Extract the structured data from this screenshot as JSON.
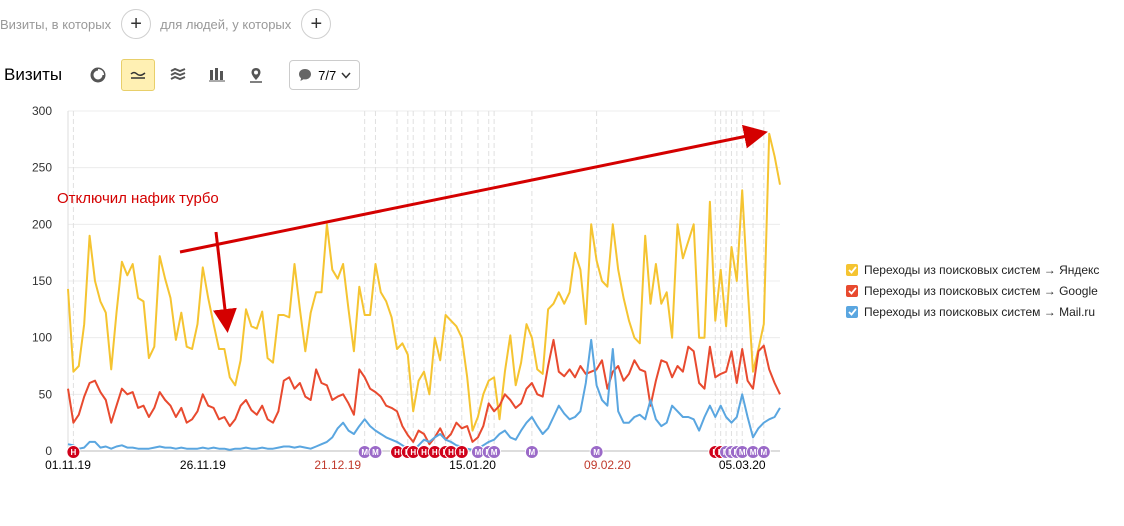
{
  "segment": {
    "visits_label": "Визиты, в которых",
    "people_label": "для людей, у которых",
    "add_symbol": "+"
  },
  "toolbar": {
    "title": "Визиты",
    "icons": [
      "pie-chart-icon",
      "line-chart-icon",
      "area-chart-icon",
      "bar-chart-icon",
      "map-icon"
    ],
    "active_icon": "line-chart-icon",
    "annotations_label": "7/7"
  },
  "annotation_note": "Отключил нафик турбо",
  "colors": {
    "yandex": "#f5c431",
    "google": "#e84a2f",
    "mailru": "#5aa6e0",
    "holiday_marker": "#d0021b",
    "mail_marker": "#9b6ac8",
    "accent": "#fff0b3"
  },
  "chart_data": {
    "type": "line",
    "ylim": [
      0,
      300
    ],
    "yticks": [
      0,
      50,
      100,
      150,
      200,
      250,
      300
    ],
    "xtick_labels": [
      {
        "label": "01.11.19",
        "index": 0,
        "color": "#000000"
      },
      {
        "label": "26.11.19",
        "index": 25,
        "color": "#000000"
      },
      {
        "label": "21.12.19",
        "index": 50,
        "color": "#c0392b"
      },
      {
        "label": "15.01.20",
        "index": 75,
        "color": "#000000"
      },
      {
        "label": "09.02.20",
        "index": 100,
        "color": "#c0392b"
      },
      {
        "label": "05.03.20",
        "index": 125,
        "color": "#000000"
      }
    ],
    "series": [
      {
        "name": "Переходы из поисковых систем → Яндекс",
        "color": "#f5c431",
        "values": [
          143,
          70,
          75,
          112,
          190,
          150,
          132,
          122,
          72,
          122,
          167,
          155,
          165,
          135,
          132,
          82,
          92,
          172,
          152,
          135,
          98,
          122,
          92,
          90,
          112,
          162,
          135,
          112,
          90,
          90,
          65,
          58,
          80,
          125,
          110,
          108,
          123,
          82,
          78,
          120,
          120,
          118,
          165,
          125,
          88,
          122,
          140,
          140,
          200,
          160,
          152,
          165,
          125,
          88,
          145,
          120,
          120,
          165,
          140,
          132,
          118,
          90,
          95,
          85,
          35,
          62,
          70,
          50,
          100,
          80,
          120,
          115,
          110,
          100,
          65,
          18,
          30,
          50,
          62,
          65,
          28,
          70,
          102,
          58,
          78,
          112,
          100,
          72,
          68,
          125,
          130,
          140,
          130,
          140,
          175,
          160,
          112,
          200,
          168,
          150,
          145,
          200,
          160,
          135,
          115,
          100,
          95,
          190,
          130,
          165,
          130,
          140,
          100,
          200,
          170,
          185,
          200,
          100,
          100,
          220,
          115,
          160,
          110,
          180,
          150,
          230,
          145,
          70,
          90,
          112,
          280,
          260,
          235
        ]
      },
      {
        "name": "Переходы из поисковых систем → Google",
        "color": "#e84a2f",
        "values": [
          55,
          25,
          32,
          48,
          60,
          62,
          52,
          45,
          25,
          40,
          55,
          50,
          52,
          38,
          40,
          30,
          38,
          52,
          45,
          40,
          30,
          38,
          25,
          28,
          35,
          50,
          40,
          38,
          28,
          30,
          22,
          28,
          40,
          45,
          36,
          32,
          40,
          28,
          25,
          35,
          62,
          65,
          55,
          60,
          48,
          45,
          72,
          60,
          58,
          45,
          48,
          50,
          42,
          32,
          72,
          65,
          55,
          52,
          48,
          40,
          38,
          35,
          22,
          14,
          8,
          18,
          15,
          6,
          12,
          20,
          10,
          15,
          25,
          20,
          22,
          8,
          12,
          22,
          42,
          35,
          40,
          50,
          45,
          38,
          42,
          55,
          60,
          50,
          48,
          75,
          98,
          70,
          66,
          72,
          65,
          75,
          68,
          70,
          72,
          80,
          55,
          70,
          75,
          62,
          68,
          80,
          72,
          70,
          40,
          62,
          80,
          78,
          65,
          75,
          70,
          92,
          88,
          60,
          55,
          92,
          65,
          68,
          70,
          88,
          60,
          90,
          62,
          55,
          88,
          93,
          72,
          60,
          50
        ]
      },
      {
        "name": "Переходы из поисковых систем → Mail.ru",
        "color": "#5aa6e0",
        "values": [
          6,
          5,
          2,
          3,
          8,
          8,
          3,
          4,
          2,
          4,
          5,
          3,
          3,
          2,
          2,
          2,
          3,
          4,
          3,
          3,
          2,
          3,
          2,
          2,
          2,
          3,
          2,
          3,
          2,
          2,
          1,
          2,
          2,
          3,
          2,
          2,
          3,
          2,
          2,
          3,
          4,
          4,
          3,
          4,
          3,
          2,
          4,
          6,
          8,
          12,
          20,
          25,
          18,
          15,
          22,
          28,
          22,
          18,
          15,
          12,
          10,
          8,
          5,
          2,
          0,
          5,
          10,
          8,
          12,
          15,
          10,
          8,
          5,
          4,
          2,
          1,
          2,
          5,
          8,
          10,
          15,
          18,
          12,
          10,
          18,
          25,
          30,
          22,
          15,
          20,
          30,
          40,
          33,
          28,
          30,
          35,
          60,
          98,
          58,
          45,
          40,
          90,
          35,
          25,
          25,
          30,
          32,
          28,
          45,
          28,
          22,
          25,
          40,
          35,
          30,
          30,
          28,
          18,
          30,
          40,
          30,
          40,
          30,
          25,
          30,
          50,
          30,
          12,
          20,
          25,
          28,
          30,
          38
        ]
      }
    ],
    "event_markers": [
      {
        "type": "holiday",
        "label": "Н",
        "index": 1
      },
      {
        "type": "mail",
        "label": "M",
        "index": 55
      },
      {
        "type": "mail",
        "label": "M",
        "index": 57
      },
      {
        "type": "holiday",
        "label": "Н",
        "index": 61
      },
      {
        "type": "holiday",
        "label": "Н",
        "index": 63
      },
      {
        "type": "holiday",
        "label": "Н",
        "index": 64
      },
      {
        "type": "holiday",
        "label": "Н",
        "index": 66
      },
      {
        "type": "holiday",
        "label": "Н",
        "index": 68
      },
      {
        "type": "holiday",
        "label": "Н",
        "index": 70
      },
      {
        "type": "holiday",
        "label": "Н",
        "index": 71
      },
      {
        "type": "holiday",
        "label": "Н",
        "index": 73
      },
      {
        "type": "mail",
        "label": "M",
        "index": 76
      },
      {
        "type": "mail",
        "label": "M",
        "index": 78
      },
      {
        "type": "mail",
        "label": "M",
        "index": 79
      },
      {
        "type": "mail",
        "label": "M",
        "index": 86
      },
      {
        "type": "mail",
        "label": "M",
        "index": 98
      },
      {
        "type": "holiday",
        "label": "Н",
        "index": 120
      },
      {
        "type": "holiday",
        "label": "Н",
        "index": 121
      },
      {
        "type": "mail",
        "label": "M",
        "index": 122
      },
      {
        "type": "mail",
        "label": "M",
        "index": 123
      },
      {
        "type": "mail",
        "label": "M",
        "index": 124
      },
      {
        "type": "mail",
        "label": "M",
        "index": 125
      },
      {
        "type": "mail",
        "label": "M",
        "index": 127
      },
      {
        "type": "mail",
        "label": "M",
        "index": 129
      }
    ]
  }
}
